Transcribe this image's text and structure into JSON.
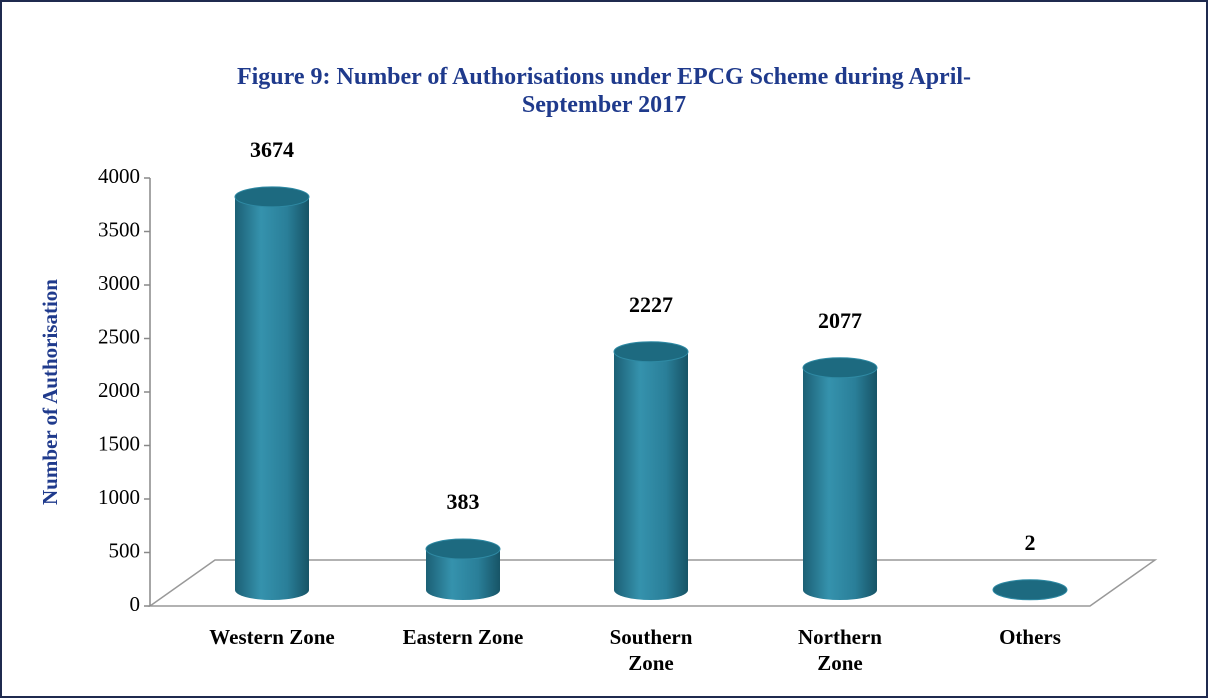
{
  "chart_data": {
    "type": "bar",
    "title": [
      "Figure 9: Number of Authorisations under EPCG Scheme during April-",
      "September 2017"
    ],
    "y_label": "Number of Authorisation",
    "categories": [
      "Western Zone",
      "Eastern Zone",
      "Southern Zone",
      "Northern Zone",
      "Others"
    ],
    "values": [
      3674,
      383,
      2227,
      2077,
      2
    ],
    "color": "#2a7f99",
    "ylim": [
      0,
      4000
    ],
    "yticks": [
      0,
      500,
      1000,
      1500,
      2000,
      2500,
      3000,
      3500,
      4000
    ]
  }
}
